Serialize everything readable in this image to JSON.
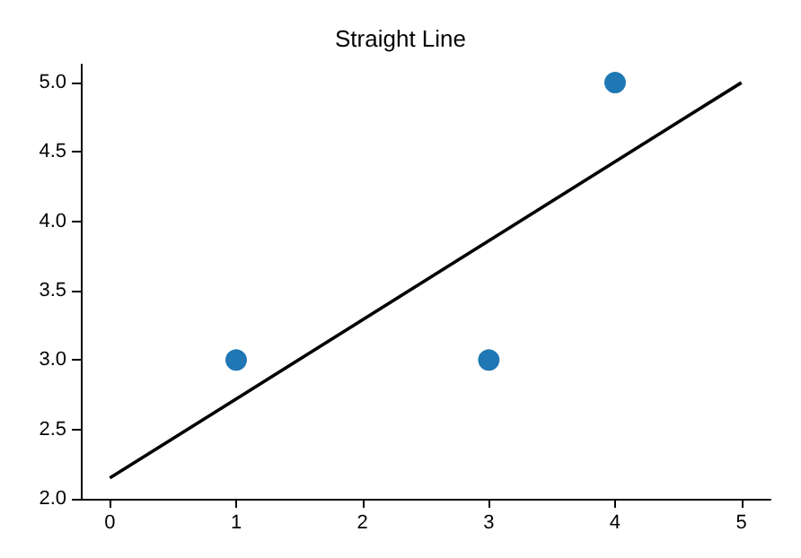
{
  "chart_data": {
    "type": "scatter",
    "title": "Straight Line",
    "xlim": [
      -0.23,
      5.23
    ],
    "xticks": [
      0,
      1,
      2,
      3,
      4,
      5
    ],
    "ylim": [
      2.0,
      5.13
    ],
    "yticks": [
      {
        "value": 2.0,
        "label": "2.0"
      },
      {
        "value": 2.5,
        "label": "2.5"
      },
      {
        "value": 3.0,
        "label": "3.0"
      },
      {
        "value": 3.5,
        "label": "3.5"
      },
      {
        "value": 4.0,
        "label": "4.0"
      },
      {
        "value": 4.5,
        "label": "4.5"
      },
      {
        "value": 5.0,
        "label": "5.0"
      }
    ],
    "grid": false,
    "series": [
      {
        "color": "#1f77b4",
        "x": [
          1,
          3,
          4
        ],
        "values": [
          3,
          3,
          5
        ],
        "marker": "circle"
      },
      {
        "type": "line",
        "color": "#000000",
        "x": [
          0,
          5
        ],
        "values": [
          2.15,
          5.0
        ],
        "line_style": "solid",
        "marker": "none"
      }
    ]
  }
}
